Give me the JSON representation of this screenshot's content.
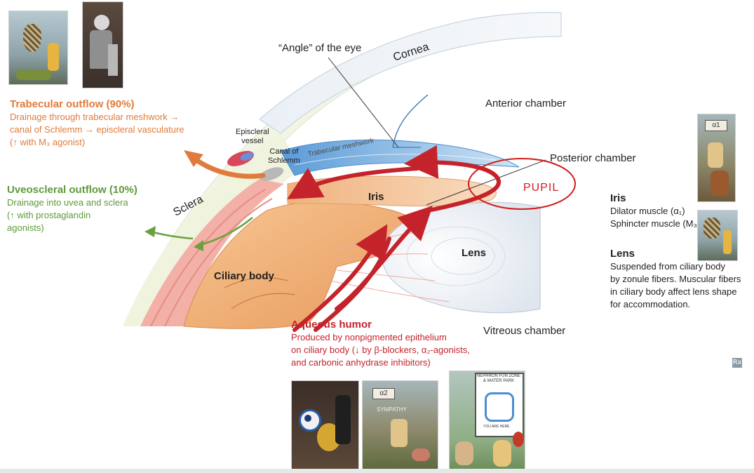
{
  "labels": {
    "angle": "“Angle” of the eye",
    "cornea": "Cornea",
    "anterior_chamber": "Anterior chamber",
    "posterior_chamber": "Posterior chamber",
    "pupil": "PUPIL",
    "iris": "Iris",
    "lens": "Lens",
    "ciliary_body": "Ciliary body",
    "vitreous_chamber": "Vitreous chamber",
    "sclera": "Sclera",
    "trabecular_meshwork": "Trabecular meshwork",
    "episcleral_vessel": [
      "Episcleral",
      "vessel"
    ],
    "canal_of_schlemm": [
      "Canal of",
      "Schlemm"
    ]
  },
  "trabecular_outflow": {
    "title": "Trabecular outflow (90%)",
    "lines": [
      "Drainage through trabecular meshwork →",
      "canal of Schlemm → episcleral vasculature",
      "(↑ with M₃ agonist)"
    ]
  },
  "uveoscleral_outflow": {
    "title": "Uveoscleral outflow (10%)",
    "lines": [
      "Drainage into uvea and sclera",
      "(↑ with prostaglandin",
      "agonists)"
    ]
  },
  "aqueous_humor": {
    "title": "Aqueous humor",
    "lines": [
      "Produced by nonpigmented epithelium",
      "on ciliary body (↓ by β-blockers, α₂-agonists,",
      "and carbonic anhydrase inhibitors)"
    ]
  },
  "iris_info": {
    "title": "Iris",
    "lines": [
      "Dilator muscle (α₁)",
      "Sphincter muscle (M₃)"
    ]
  },
  "lens_info": {
    "title": "Lens",
    "lines": [
      "Suspended from ciliary body",
      "by zonule fibers. Muscular fibers",
      "in ciliary body affect lens shape",
      "for accommodation."
    ]
  },
  "thumbnails": {
    "alpha1_sign": "α1",
    "alpha2_sign": "α2",
    "sympathy_sign": "SYMPATHY",
    "nephron_sign": [
      "NEPHRON FUN ZONE",
      "& WATER PARK"
    ],
    "you_are_here": "YOU ARE HERE"
  },
  "rx_icon": "Rx",
  "colors": {
    "orange": "#e07b3c",
    "green": "#5f9a3a",
    "red": "#c4232b",
    "cornea": "#e6eef5",
    "sclera": "#eef3dc",
    "ciliary": "#f2b57a",
    "lens": "#eef2f7",
    "trabecular": "#7fb3e0"
  }
}
